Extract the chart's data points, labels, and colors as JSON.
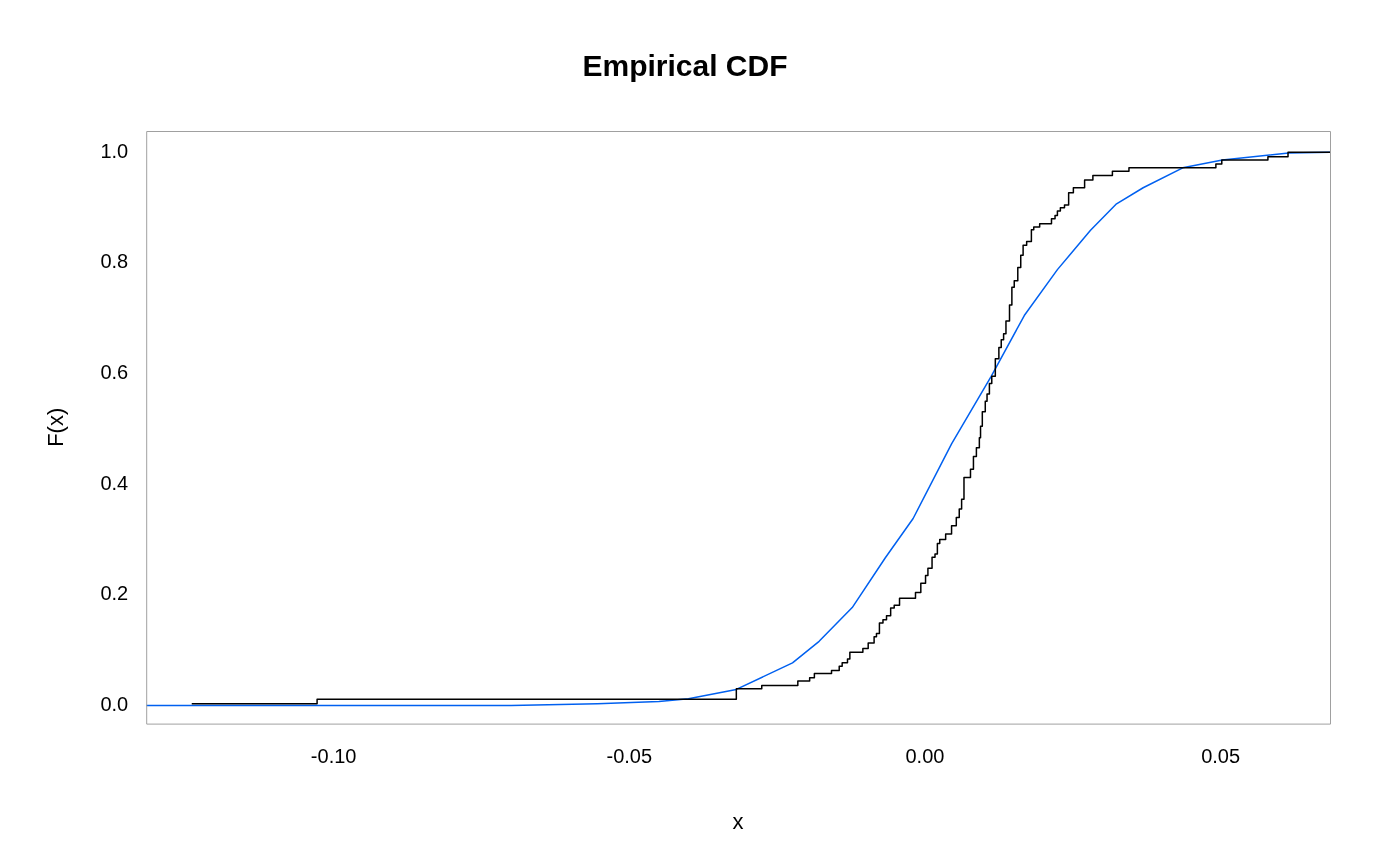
{
  "chart_data": {
    "type": "step",
    "title": "Empirical CDF",
    "xlabel": "x",
    "ylabel": "F(x)",
    "xlim": [
      -0.1317,
      0.0685
    ],
    "ylim": [
      -0.0328,
      1.0386
    ],
    "xticks": [
      {
        "value": -0.1,
        "label": "-0.10"
      },
      {
        "value": -0.05,
        "label": "-0.05"
      },
      {
        "value": 0,
        "label": "0.00"
      },
      {
        "value": 0.05,
        "label": "0.05"
      }
    ],
    "yticks": [
      {
        "value": 0,
        "label": "0.0"
      },
      {
        "value": 0.2,
        "label": "0.2"
      },
      {
        "value": 0.4,
        "label": "0.4"
      },
      {
        "value": 0.6,
        "label": "0.6"
      },
      {
        "value": 0.8,
        "label": "0.8"
      },
      {
        "value": 1,
        "label": "1.0"
      }
    ],
    "grid": false,
    "legend": false,
    "marker": "none",
    "line_style": "solid",
    "series": [
      {
        "type": "step",
        "color": "#000000",
        "x": [
          -0.124,
          -0.1028,
          -0.0319,
          -0.0276,
          -0.0215,
          -0.0195,
          -0.0187,
          -0.0158,
          -0.0145,
          -0.014,
          -0.0131,
          -0.0127,
          -0.0105,
          -0.0096,
          -0.0086,
          -0.0082,
          -0.0077,
          -0.0071,
          -0.0065,
          -0.0058,
          -0.0052,
          -0.0043,
          -0.0016,
          -0.0007,
          0.0001,
          0.0005,
          0.0012,
          0.0017,
          0.0021,
          0.0025,
          0.0035,
          0.0045,
          0.0053,
          0.0058,
          0.0062,
          0.0066,
          0.0077,
          0.0082,
          0.0087,
          0.0092,
          0.0094,
          0.0097,
          0.0102,
          0.0105,
          0.0109,
          0.0113,
          0.0119,
          0.0125,
          0.0129,
          0.0133,
          0.0137,
          0.0143,
          0.0147,
          0.0151,
          0.0157,
          0.0162,
          0.0166,
          0.0172,
          0.018,
          0.0184,
          0.0194,
          0.0214,
          0.022,
          0.0224,
          0.0229,
          0.0236,
          0.0243,
          0.0251,
          0.027,
          0.0284,
          0.0317,
          0.0345,
          0.0492,
          0.0502,
          0.058,
          0.0614,
          0.0685
        ],
        "values": [
          0.003,
          0.011,
          0.03,
          0.036,
          0.044,
          0.05,
          0.058,
          0.063,
          0.071,
          0.077,
          0.084,
          0.096,
          0.103,
          0.113,
          0.124,
          0.13,
          0.149,
          0.155,
          0.162,
          0.176,
          0.181,
          0.194,
          0.204,
          0.221,
          0.235,
          0.248,
          0.268,
          0.274,
          0.293,
          0.3,
          0.31,
          0.325,
          0.34,
          0.355,
          0.373,
          0.412,
          0.427,
          0.45,
          0.466,
          0.484,
          0.505,
          0.531,
          0.55,
          0.563,
          0.582,
          0.595,
          0.627,
          0.647,
          0.661,
          0.672,
          0.695,
          0.724,
          0.756,
          0.768,
          0.792,
          0.814,
          0.832,
          0.839,
          0.86,
          0.865,
          0.871,
          0.88,
          0.886,
          0.894,
          0.9,
          0.905,
          0.927,
          0.936,
          0.95,
          0.958,
          0.966,
          0.972,
          0.979,
          0.986,
          0.992,
          1,
          1
        ]
      },
      {
        "type": "line",
        "color": "#0060f0",
        "x": [
          -0.1317,
          -0.07,
          -0.0554,
          -0.045,
          -0.04,
          -0.0319,
          -0.0224,
          -0.0179,
          -0.0123,
          -0.0067,
          -0.002,
          0.0045,
          0.0112,
          0.0168,
          0.0224,
          0.028,
          0.0324,
          0.0369,
          0.0436,
          0.0503,
          0.0615,
          0.0685
        ],
        "values": [
          0,
          0,
          0.003,
          0.007,
          0.012,
          0.029,
          0.077,
          0.116,
          0.177,
          0.267,
          0.338,
          0.473,
          0.595,
          0.705,
          0.788,
          0.859,
          0.907,
          0.936,
          0.972,
          0.986,
          0.999,
          1
        ]
      }
    ]
  }
}
